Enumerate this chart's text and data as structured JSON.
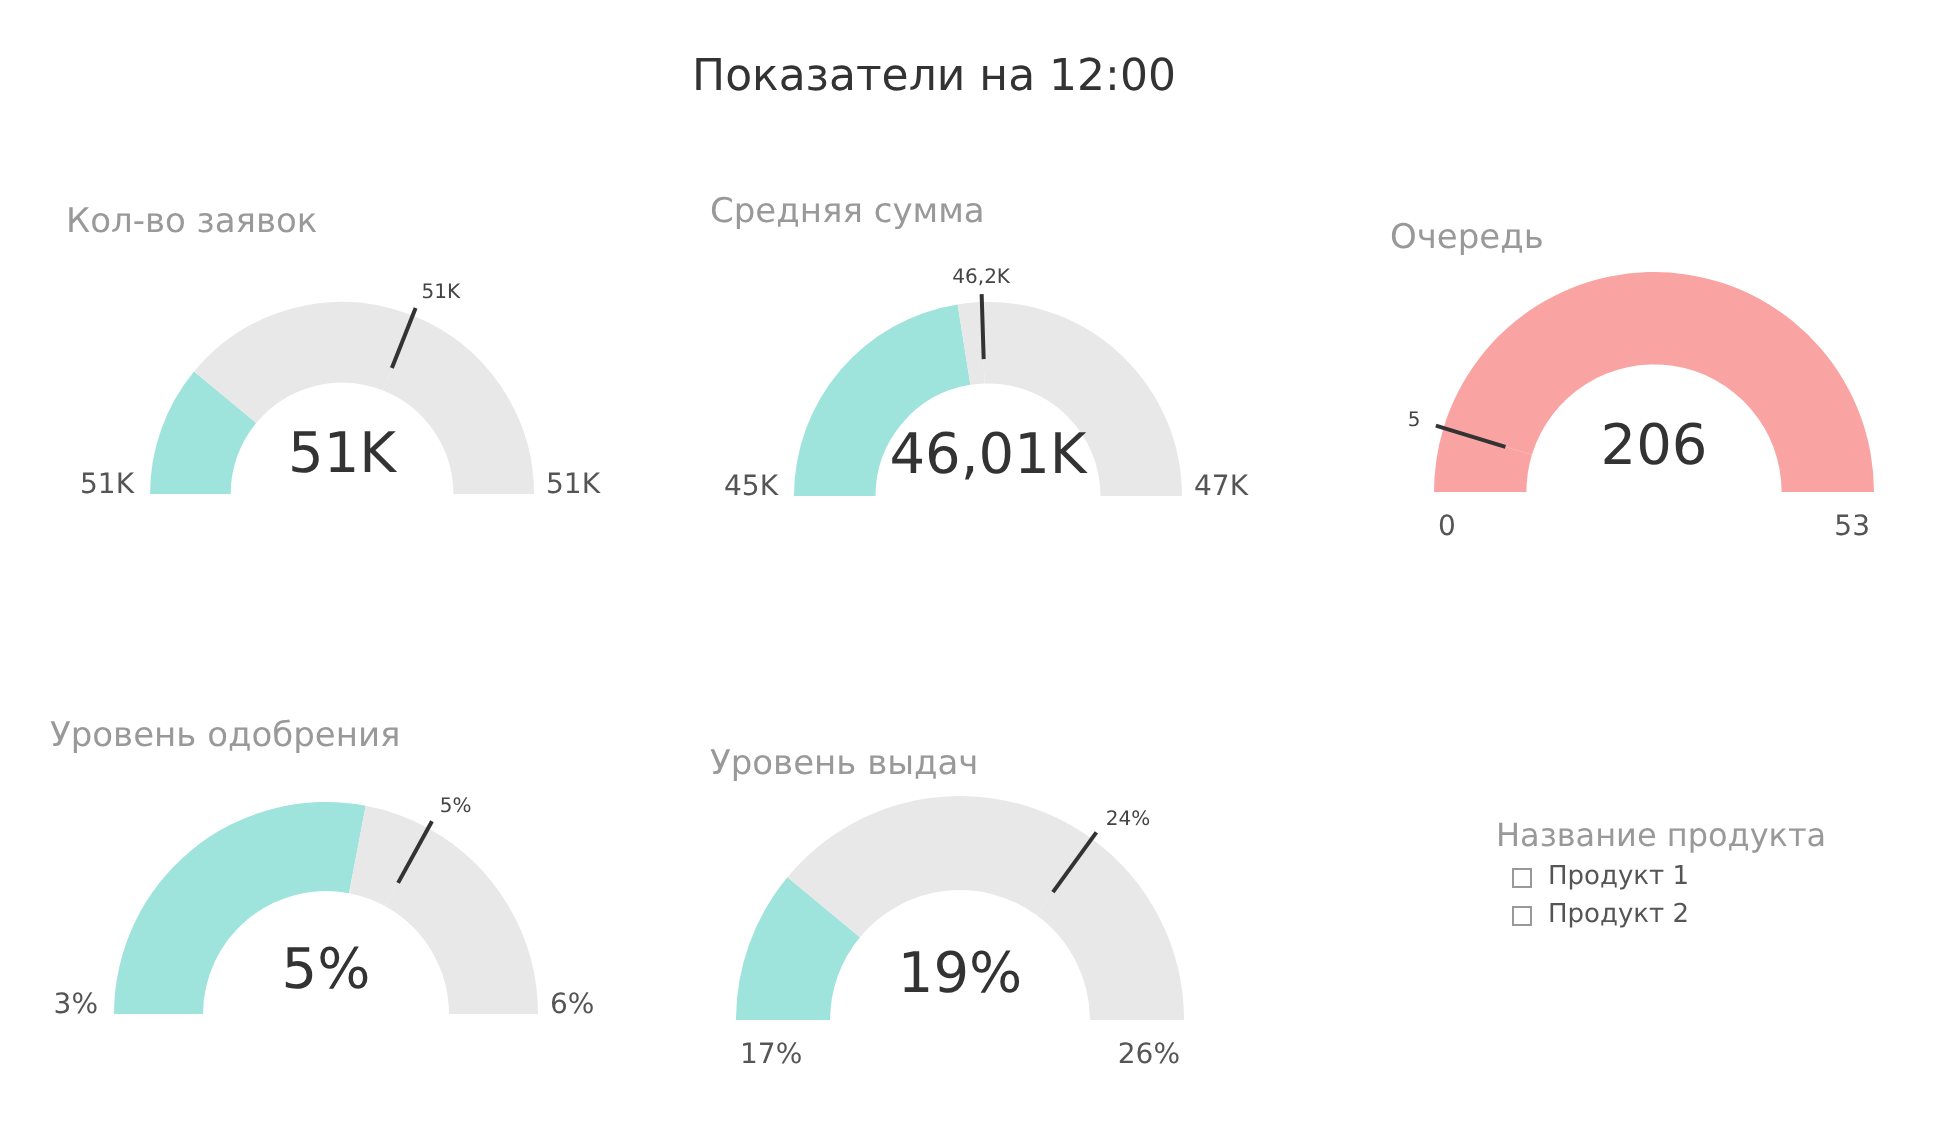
{
  "chart_data": [
    {
      "type": "other",
      "title": "Показатели на 12:00"
    },
    {
      "type": "donut",
      "title": "Кол-во заявок",
      "categories": [
        null,
        null,
        null
      ],
      "values": [
        22,
        40,
        38
      ],
      "colors": [
        "#9ee3dc",
        "#e8e8e8",
        "#e8e8e8"
      ],
      "annotations": [
        "51K",
        "51K",
        "51K",
        "51K"
      ]
    },
    {
      "type": "donut",
      "title": "Средняя сумма",
      "categories": [
        null,
        null,
        null
      ],
      "values": [
        45,
        4,
        51
      ],
      "colors": [
        "#9ee3dc",
        "#e8e8e8",
        "#e8e8e8"
      ],
      "annotations": [
        "45K",
        "47K",
        "46,01K",
        "46,2K"
      ]
    },
    {
      "type": "donut",
      "title": "Очередь",
      "categories": [
        null,
        null
      ],
      "values": [
        9.4,
        90.6
      ],
      "colors": [
        "#f9a3a3",
        "#f9a3a3"
      ],
      "annotations": [
        "0",
        "53",
        "206",
        "5"
      ]
    },
    {
      "type": "donut",
      "title": "Уровень одобрения",
      "categories": [
        null,
        null,
        null
      ],
      "values": [
        56,
        10,
        34
      ],
      "colors": [
        "#9ee3dc",
        "#e8e8e8",
        "#e8e8e8"
      ],
      "annotations": [
        "3%",
        "6%",
        "5%",
        "5%"
      ]
    },
    {
      "type": "donut",
      "title": "Уровень выдач",
      "categories": [
        null,
        null,
        null
      ],
      "values": [
        22,
        48,
        30
      ],
      "colors": [
        "#9ee3dc",
        "#e8e8e8",
        "#e8e8e8"
      ],
      "annotations": [
        "17%",
        "26%",
        "19%",
        "24%"
      ]
    },
    {
      "type": "other",
      "title": "Название продукта",
      "annotations": [
        "Продукт 1",
        "Продукт 2"
      ]
    }
  ]
}
